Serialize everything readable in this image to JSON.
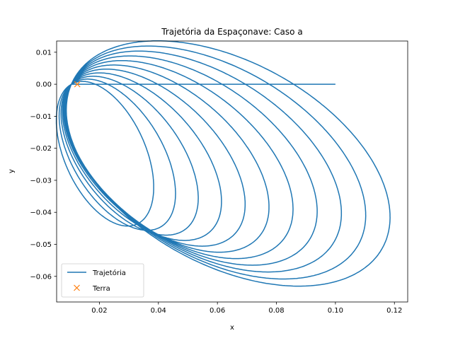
{
  "chart_data": {
    "type": "line",
    "title": "Trajetória da Espaçonave: Caso a",
    "xlabel": "x",
    "ylabel": "y",
    "xlim": [
      0.0055,
      0.1245
    ],
    "ylim": [
      -0.068,
      0.0135
    ],
    "xticks": [
      0.02,
      0.04,
      0.06,
      0.08,
      0.1,
      0.12
    ],
    "xtick_labels": [
      "0.02",
      "0.04",
      "0.06",
      "0.08",
      "0.10",
      "0.12"
    ],
    "yticks": [
      0.01,
      0.0,
      -0.01,
      -0.02,
      -0.03,
      -0.04,
      -0.05,
      -0.06
    ],
    "ytick_labels": [
      "0.01",
      "0.00",
      "−0.01",
      "−0.02",
      "−0.03",
      "−0.04",
      "−0.05",
      "−0.06"
    ],
    "grid": false,
    "legend_position": "lower-left",
    "colors": {
      "trajectory": "#1f77b4",
      "earth": "#ff7f0e"
    },
    "series": [
      {
        "name": "Trajetória",
        "type": "line",
        "loops": 11,
        "start": [
          0.1,
          0.0
        ],
        "apoapsis_start": [
          0.1168,
          -0.0495
        ],
        "apoapsis_end": [
          0.0333,
          -0.0434
        ],
        "periapsis": [
          0.0105,
          0.0
        ],
        "x_range": [
          0.0105,
          0.1168
        ],
        "y_range": [
          -0.0635,
          0.01
        ]
      },
      {
        "name": "Terra",
        "type": "scatter",
        "marker": "x",
        "x": [
          0.0125
        ],
        "y": [
          0.0
        ]
      }
    ]
  }
}
